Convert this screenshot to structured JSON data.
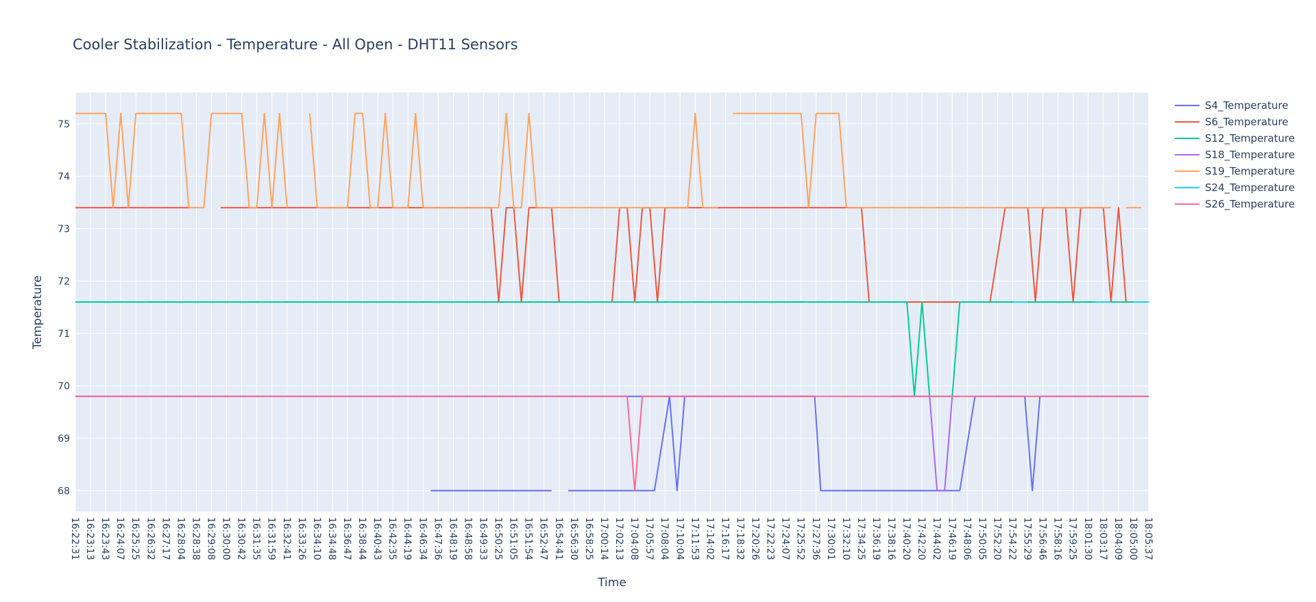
{
  "chart_data": {
    "type": "line",
    "title": "Cooler Stabilization - Temperature - All Open - DHT11 Sensors",
    "xlabel": "Time",
    "ylabel": "Temperature",
    "ylim": [
      67.6,
      75.6
    ],
    "y_ticks": [
      68,
      69,
      70,
      71,
      72,
      73,
      74,
      75
    ],
    "grid": true,
    "legend_position": "top-right, outside plot",
    "plot_bgcolor": "#e5ecf6",
    "x_tick_labels": [
      "16:22:31",
      "16:23:13",
      "16:23:43",
      "16:24:07",
      "16:25:25",
      "16:26:32",
      "16:27:17",
      "16:28:04",
      "16:28:38",
      "16:29:08",
      "16:30:00",
      "16:30:42",
      "16:31:35",
      "16:31:59",
      "16:32:41",
      "16:33:26",
      "16:34:10",
      "16:34:48",
      "16:36:47",
      "16:38:44",
      "16:40:43",
      "16:42:35",
      "16:44:19",
      "16:46:34",
      "16:47:36",
      "16:48:19",
      "16:48:58",
      "16:49:33",
      "16:50:25",
      "16:51:05",
      "16:51:54",
      "16:52:47",
      "16:54:41",
      "16:56:30",
      "16:58:25",
      "17:00:14",
      "17:02:13",
      "17:04:08",
      "17:05:57",
      "17:08:04",
      "17:10:04",
      "17:11:53",
      "17:14:02",
      "17:16:17",
      "17:18:32",
      "17:20:26",
      "17:22:23",
      "17:24:07",
      "17:25:52",
      "17:27:36",
      "17:30:01",
      "17:32:10",
      "17:34:25",
      "17:36:19",
      "17:38:16",
      "17:40:20",
      "17:42:20",
      "17:44:02",
      "17:46:19",
      "17:48:06",
      "17:50:05",
      "17:52:20",
      "17:54:22",
      "17:55:29",
      "17:56:46",
      "17:58:16",
      "17:59:25",
      "18:01:30",
      "18:03:17",
      "18:04:09",
      "18:05:00",
      "18:05:37"
    ],
    "x_range": [
      0,
      71
    ],
    "series": [
      {
        "name": "S4_Temperature",
        "color": "#636efa",
        "segments": [
          [
            [
              0,
              69.8
            ],
            [
              48.9,
              69.8
            ]
          ],
          [
            [
              23.5,
              68
            ],
            [
              31.5,
              68
            ]
          ],
          [
            [
              32.6,
              68
            ],
            [
              38.3,
              68
            ],
            [
              39.3,
              69.8
            ],
            [
              39.8,
              68
            ],
            [
              40.3,
              69.8
            ],
            [
              48.9,
              69.8
            ],
            [
              49.3,
              68
            ],
            [
              58.5,
              68
            ],
            [
              59.5,
              69.8
            ],
            [
              62.8,
              69.8
            ],
            [
              63.3,
              68
            ],
            [
              63.8,
              69.8
            ],
            [
              71,
              69.8
            ]
          ]
        ]
      },
      {
        "name": "S6_Temperature",
        "color": "#ef553b",
        "segments": [
          [
            [
              0,
              73.4
            ],
            [
              7.6,
              73.4
            ]
          ],
          [
            [
              9.6,
              73.4
            ],
            [
              27.5,
              73.4
            ],
            [
              28,
              71.6
            ],
            [
              28.5,
              73.4
            ],
            [
              29,
              73.4
            ],
            [
              29.5,
              71.6
            ],
            [
              30,
              73.4
            ],
            [
              31.5,
              73.4
            ],
            [
              32,
              71.6
            ],
            [
              35.5,
              71.6
            ],
            [
              36,
              73.4
            ],
            [
              36.5,
              73.4
            ],
            [
              37,
              71.6
            ],
            [
              37.5,
              73.4
            ],
            [
              38,
              73.4
            ],
            [
              38.5,
              71.6
            ],
            [
              39,
              73.4
            ],
            [
              52,
              73.4
            ],
            [
              52.5,
              71.6
            ],
            [
              60.5,
              71.6
            ],
            [
              61.5,
              73.4
            ],
            [
              63,
              73.4
            ],
            [
              63.5,
              71.6
            ],
            [
              64,
              73.4
            ],
            [
              65.5,
              73.4
            ],
            [
              66,
              71.6
            ],
            [
              66.5,
              73.4
            ],
            [
              68,
              73.4
            ],
            [
              68.5,
              71.6
            ],
            [
              69,
              73.4
            ],
            [
              69.5,
              71.6
            ],
            [
              71,
              71.6
            ]
          ]
        ]
      },
      {
        "name": "S12_Temperature",
        "color": "#00cc96",
        "segments": [
          [
            [
              0,
              71.6
            ],
            [
              55,
              71.6
            ],
            [
              55.5,
              69.8
            ],
            [
              56,
              71.6
            ],
            [
              56.5,
              69.8
            ],
            [
              57.5,
              69.8
            ],
            [
              58,
              69.8
            ],
            [
              58.5,
              71.6
            ],
            [
              71,
              71.6
            ]
          ]
        ]
      },
      {
        "name": "S18_Temperature",
        "color": "#ab63fa",
        "segments": [
          [
            [
              54,
              69.8
            ],
            [
              56.5,
              69.8
            ],
            [
              57,
              68
            ],
            [
              57.5,
              68
            ],
            [
              58,
              69.8
            ],
            [
              58.5,
              69.8
            ]
          ]
        ]
      },
      {
        "name": "S19_Temperature",
        "color": "#ffa15a",
        "segments": [
          [
            [
              0,
              75.2
            ],
            [
              2,
              75.2
            ],
            [
              2.5,
              73.4
            ],
            [
              3,
              75.2
            ],
            [
              3.5,
              73.4
            ],
            [
              4,
              75.2
            ],
            [
              7,
              75.2
            ],
            [
              7.5,
              73.4
            ],
            [
              8.5,
              73.4
            ],
            [
              9,
              75.2
            ],
            [
              11,
              75.2
            ],
            [
              11.5,
              73.4
            ],
            [
              12,
              73.4
            ],
            [
              12.5,
              75.2
            ],
            [
              13,
              73.4
            ],
            [
              13.5,
              75.2
            ],
            [
              14,
              73.4
            ]
          ],
          [
            [
              15.5,
              75.2
            ],
            [
              16,
              73.4
            ],
            [
              18,
              73.4
            ],
            [
              18.5,
              75.2
            ],
            [
              19,
              75.2
            ],
            [
              19.5,
              73.4
            ],
            [
              20,
              73.4
            ],
            [
              20.5,
              75.2
            ],
            [
              21,
              73.4
            ],
            [
              21.5,
              73.4
            ],
            [
              22,
              73.4
            ],
            [
              22.5,
              75.2
            ],
            [
              23,
              73.4
            ],
            [
              28,
              73.4
            ],
            [
              28.5,
              75.2
            ],
            [
              29,
              73.4
            ],
            [
              29.5,
              73.4
            ],
            [
              30,
              75.2
            ],
            [
              30.5,
              73.4
            ],
            [
              40.5,
              73.4
            ],
            [
              41,
              75.2
            ],
            [
              41.5,
              73.4
            ],
            [
              42.5,
              73.4
            ]
          ],
          [
            [
              43.5,
              75.2
            ],
            [
              48,
              75.2
            ],
            [
              48.5,
              73.4
            ],
            [
              49,
              75.2
            ],
            [
              50.5,
              75.2
            ],
            [
              51,
              73.4
            ],
            [
              68.5,
              73.4
            ]
          ],
          [
            [
              69.5,
              73.4
            ],
            [
              70.5,
              73.4
            ]
          ]
        ]
      },
      {
        "name": "S24_Temperature",
        "color": "#19d3f3",
        "segments": [
          [
            [
              15,
              69.8
            ],
            [
              16,
              69.8
            ]
          ],
          [
            [
              62,
              71.6
            ],
            [
              63,
              71.6
            ]
          ],
          [
            [
              67.5,
              71.6
            ],
            [
              68.5,
              71.6
            ]
          ],
          [
            [
              69,
              69.8
            ],
            [
              70,
              69.8
            ]
          ],
          [
            [
              70,
              71.6
            ],
            [
              71,
              71.6
            ]
          ]
        ]
      },
      {
        "name": "S26_Temperature",
        "color": "#ff6692",
        "segments": [
          [
            [
              0,
              69.8
            ],
            [
              36.5,
              69.8
            ],
            [
              37,
              68
            ],
            [
              37.5,
              69.8
            ],
            [
              71,
              69.8
            ]
          ]
        ]
      }
    ]
  }
}
